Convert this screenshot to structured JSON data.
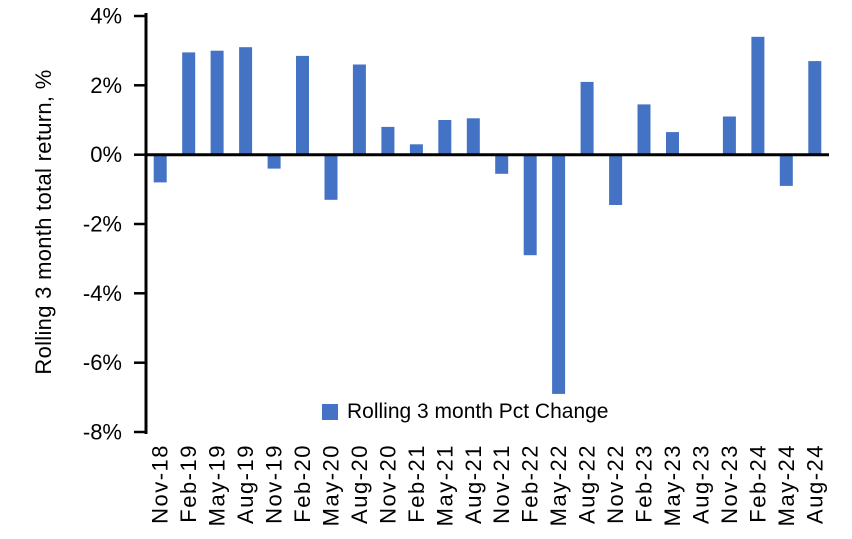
{
  "chart_data": {
    "type": "bar",
    "title": "",
    "xlabel": "",
    "ylabel": "Rolling 3 month total return, %",
    "legend": "Rolling 3 month Pct Change",
    "legend_position": "bottom-center-inside",
    "grid": false,
    "ylim": [
      -8,
      4
    ],
    "ytick_values": [
      4,
      2,
      0,
      -2,
      -4,
      -6,
      -8
    ],
    "ytick_suffix": "%",
    "bar_color": "#4472C4",
    "axis_color": "#000000",
    "categories": [
      "Nov-18",
      "Feb-19",
      "May-19",
      "Aug-19",
      "Nov-19",
      "Feb-20",
      "May-20",
      "Aug-20",
      "Nov-20",
      "Feb-21",
      "May-21",
      "Aug-21",
      "Nov-21",
      "Feb-22",
      "May-22",
      "Aug-22",
      "Nov-22",
      "Feb-23",
      "May-23",
      "Aug-23",
      "Nov-23",
      "Feb-24",
      "May-24",
      "Aug-24"
    ],
    "values": [
      -0.8,
      2.95,
      3.0,
      3.1,
      -0.4,
      2.85,
      -1.3,
      2.6,
      0.8,
      0.3,
      1.0,
      1.05,
      -0.55,
      -2.9,
      -6.9,
      2.1,
      -1.45,
      1.45,
      0.65,
      0.0,
      1.1,
      3.4,
      -0.9,
      2.7
    ]
  }
}
